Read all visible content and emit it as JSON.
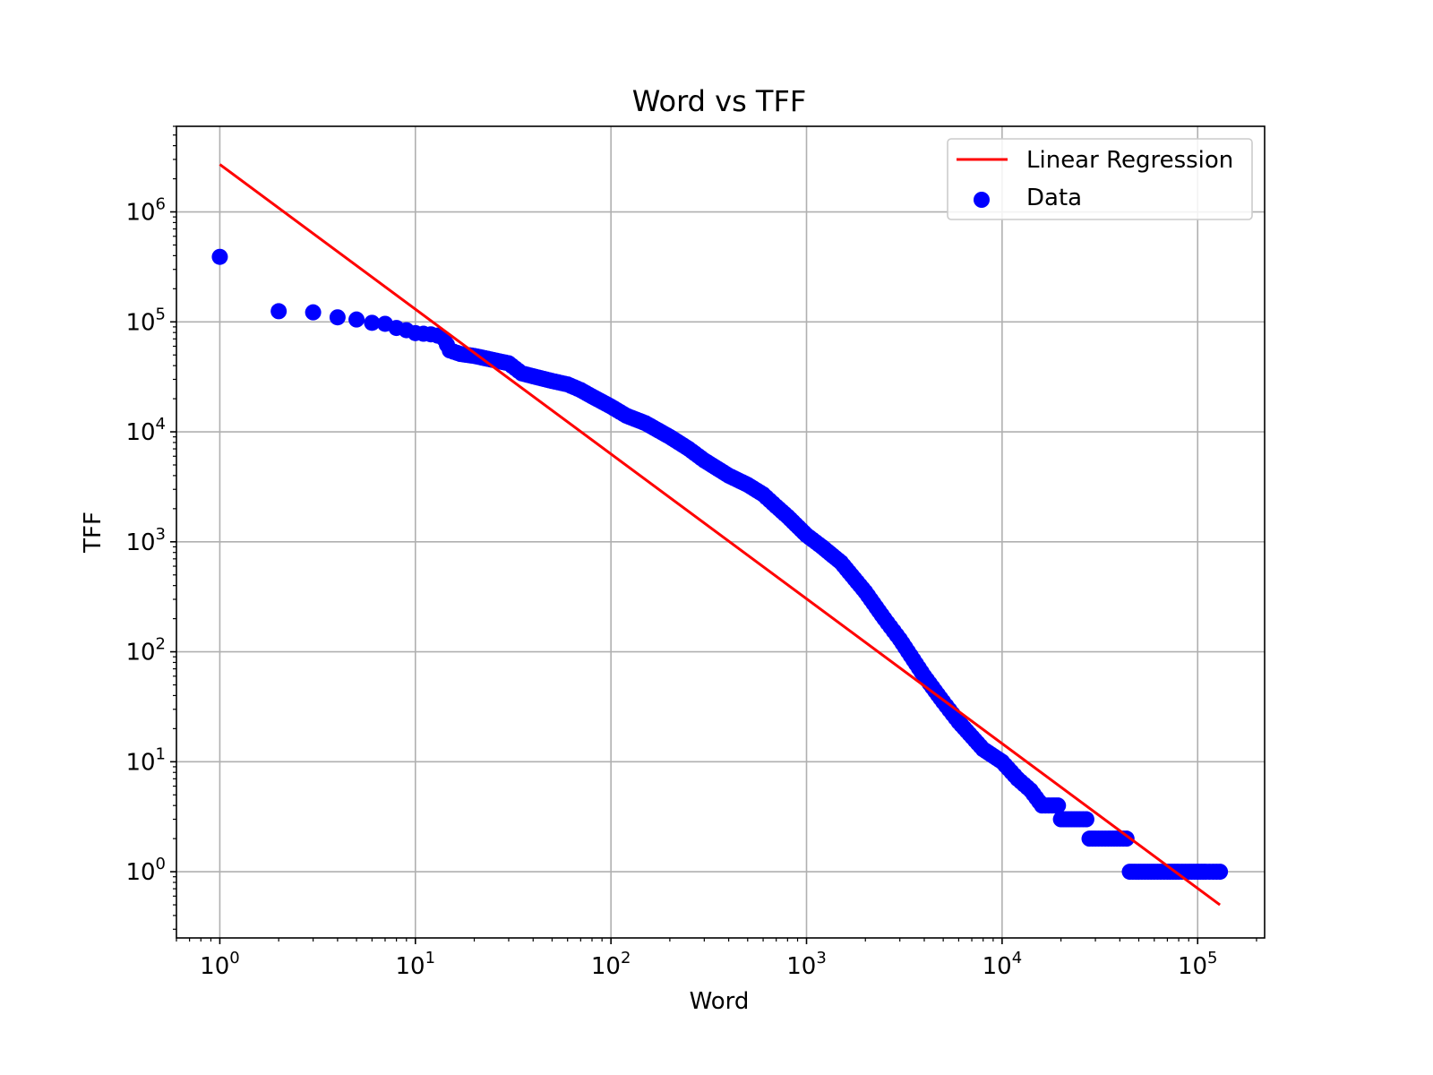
{
  "chart_data": {
    "type": "scatter",
    "title": "Word vs TFF",
    "xlabel": "Word",
    "ylabel": "TFF",
    "xscale": "log",
    "yscale": "log",
    "xlim": [
      0.6,
      220000
    ],
    "ylim": [
      0.25,
      6000000
    ],
    "x_ticks": [
      {
        "value": 1,
        "base": "10",
        "exp": "0"
      },
      {
        "value": 10,
        "base": "10",
        "exp": "1"
      },
      {
        "value": 100,
        "base": "10",
        "exp": "2"
      },
      {
        "value": 1000,
        "base": "10",
        "exp": "3"
      },
      {
        "value": 10000,
        "base": "10",
        "exp": "4"
      },
      {
        "value": 100000,
        "base": "10",
        "exp": "5"
      }
    ],
    "y_ticks": [
      {
        "value": 1,
        "base": "10",
        "exp": "0"
      },
      {
        "value": 10,
        "base": "10",
        "exp": "1"
      },
      {
        "value": 100,
        "base": "10",
        "exp": "2"
      },
      {
        "value": 1000,
        "base": "10",
        "exp": "3"
      },
      {
        "value": 10000,
        "base": "10",
        "exp": "4"
      },
      {
        "value": 100000,
        "base": "10",
        "exp": "5"
      },
      {
        "value": 1000000,
        "base": "10",
        "exp": "6"
      }
    ],
    "grid": true,
    "legend_position": "top-right",
    "series": [
      {
        "name": "Linear Regression",
        "type": "line",
        "color": "#ff0000",
        "x": [
          1,
          130000
        ],
        "y": [
          2700000,
          0.5
        ]
      },
      {
        "name": "Data",
        "type": "scatter",
        "color": "#0000ff",
        "x": [
          1,
          2,
          3,
          4,
          5,
          6,
          7,
          8,
          9,
          10,
          11,
          12,
          13,
          14,
          15,
          17,
          20,
          25,
          30,
          35,
          40,
          50,
          60,
          70,
          80,
          100,
          120,
          150,
          200,
          250,
          300,
          400,
          500,
          600,
          700,
          800,
          1000,
          1200,
          1500,
          2000,
          2500,
          3000,
          4000,
          5000,
          6000,
          8000,
          10000,
          12000,
          14000,
          16000,
          18000,
          20000,
          22000,
          25000,
          28000,
          30000,
          35000,
          40000,
          45000,
          50000,
          60000,
          70000,
          80000,
          90000,
          100000,
          110000,
          120000,
          130000
        ],
        "y": [
          390000,
          125000,
          122000,
          110000,
          105000,
          98000,
          96000,
          88000,
          84000,
          79000,
          78000,
          77000,
          75000,
          70000,
          55000,
          51000,
          49000,
          45000,
          42000,
          34000,
          32000,
          29000,
          27000,
          24000,
          21000,
          17000,
          14000,
          12000,
          9000,
          7000,
          5500,
          4000,
          3300,
          2700,
          2100,
          1700,
          1150,
          900,
          650,
          350,
          200,
          130,
          60,
          35,
          23,
          13,
          10,
          7,
          5.5,
          4,
          4,
          3,
          3,
          3,
          2,
          2,
          2,
          2,
          1,
          1,
          1,
          1,
          1,
          1,
          1,
          1,
          1,
          1
        ]
      }
    ]
  }
}
